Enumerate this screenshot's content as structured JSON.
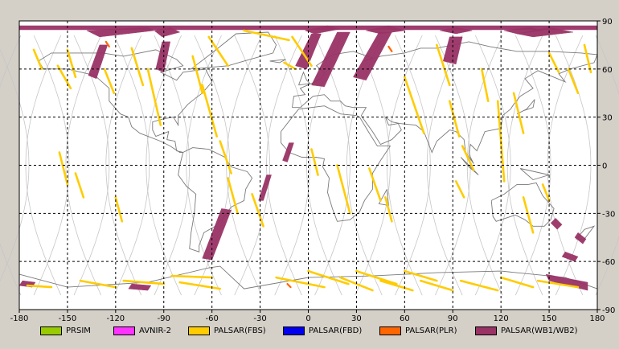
{
  "map": {
    "lon_ticks": [
      "-180",
      "-150",
      "-120",
      "-90",
      "-60",
      "-30",
      "0",
      "30",
      "60",
      "90",
      "120",
      "150",
      "180"
    ],
    "lat_ticks": [
      "90",
      "60",
      "30",
      "0",
      "-30",
      "-60",
      "-90"
    ],
    "colors": {
      "background": "#ffffff",
      "grid": "#000000",
      "coastline": "#7a7a7a",
      "orbit": "#c6c6c6"
    }
  },
  "legend": {
    "items": [
      {
        "label": "PRSIM",
        "color": "#99cc00"
      },
      {
        "label": "AVNIR-2",
        "color": "#ff33ff"
      },
      {
        "label": "PALSAR(FBS)",
        "color": "#ffcc00"
      },
      {
        "label": "PALSAR(FBD)",
        "color": "#0000ee"
      },
      {
        "label": "PALSAR(PLR)",
        "color": "#ff6600"
      },
      {
        "label": "PALSAR(WB1/WB2)",
        "color": "#993366"
      }
    ]
  }
}
